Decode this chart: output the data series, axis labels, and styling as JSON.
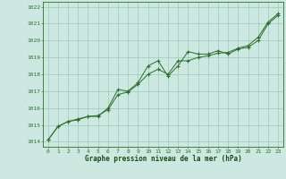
{
  "title": "Graphe pression niveau de la mer (hPa)",
  "background_color": "#cce8e0",
  "grid_color": "#99ccbb",
  "line_color": "#2d6e2d",
  "marker_color": "#2d6e2d",
  "x_ticks": [
    0,
    1,
    2,
    3,
    4,
    5,
    6,
    7,
    8,
    9,
    10,
    11,
    12,
    13,
    14,
    15,
    16,
    17,
    18,
    19,
    20,
    21,
    22,
    23
  ],
  "y_ticks": [
    1014,
    1015,
    1016,
    1017,
    1018,
    1019,
    1020,
    1021,
    1022
  ],
  "ylim": [
    1013.7,
    1022.3
  ],
  "xlim": [
    -0.5,
    23.5
  ],
  "series1_x": [
    0,
    1,
    2,
    3,
    4,
    5,
    6,
    7,
    8,
    9,
    10,
    11,
    12,
    13,
    14,
    15,
    16,
    17,
    18,
    19,
    20,
    21,
    22,
    23
  ],
  "series1_y": [
    1014.1,
    1014.9,
    1015.2,
    1015.3,
    1015.5,
    1015.5,
    1016.0,
    1017.1,
    1017.0,
    1017.5,
    1018.5,
    1018.8,
    1017.9,
    1018.5,
    1019.35,
    1019.2,
    1019.2,
    1019.4,
    1019.2,
    1019.5,
    1019.6,
    1020.0,
    1021.0,
    1021.5
  ],
  "series2_x": [
    0,
    1,
    2,
    3,
    4,
    5,
    6,
    7,
    8,
    9,
    10,
    11,
    12,
    13,
    14,
    15,
    16,
    17,
    18,
    19,
    20,
    21,
    22,
    23
  ],
  "series2_y": [
    1014.1,
    1014.9,
    1015.2,
    1015.35,
    1015.5,
    1015.55,
    1015.9,
    1016.8,
    1016.95,
    1017.4,
    1018.0,
    1018.3,
    1018.0,
    1018.8,
    1018.8,
    1019.0,
    1019.1,
    1019.25,
    1019.3,
    1019.55,
    1019.7,
    1020.2,
    1021.1,
    1021.6
  ]
}
